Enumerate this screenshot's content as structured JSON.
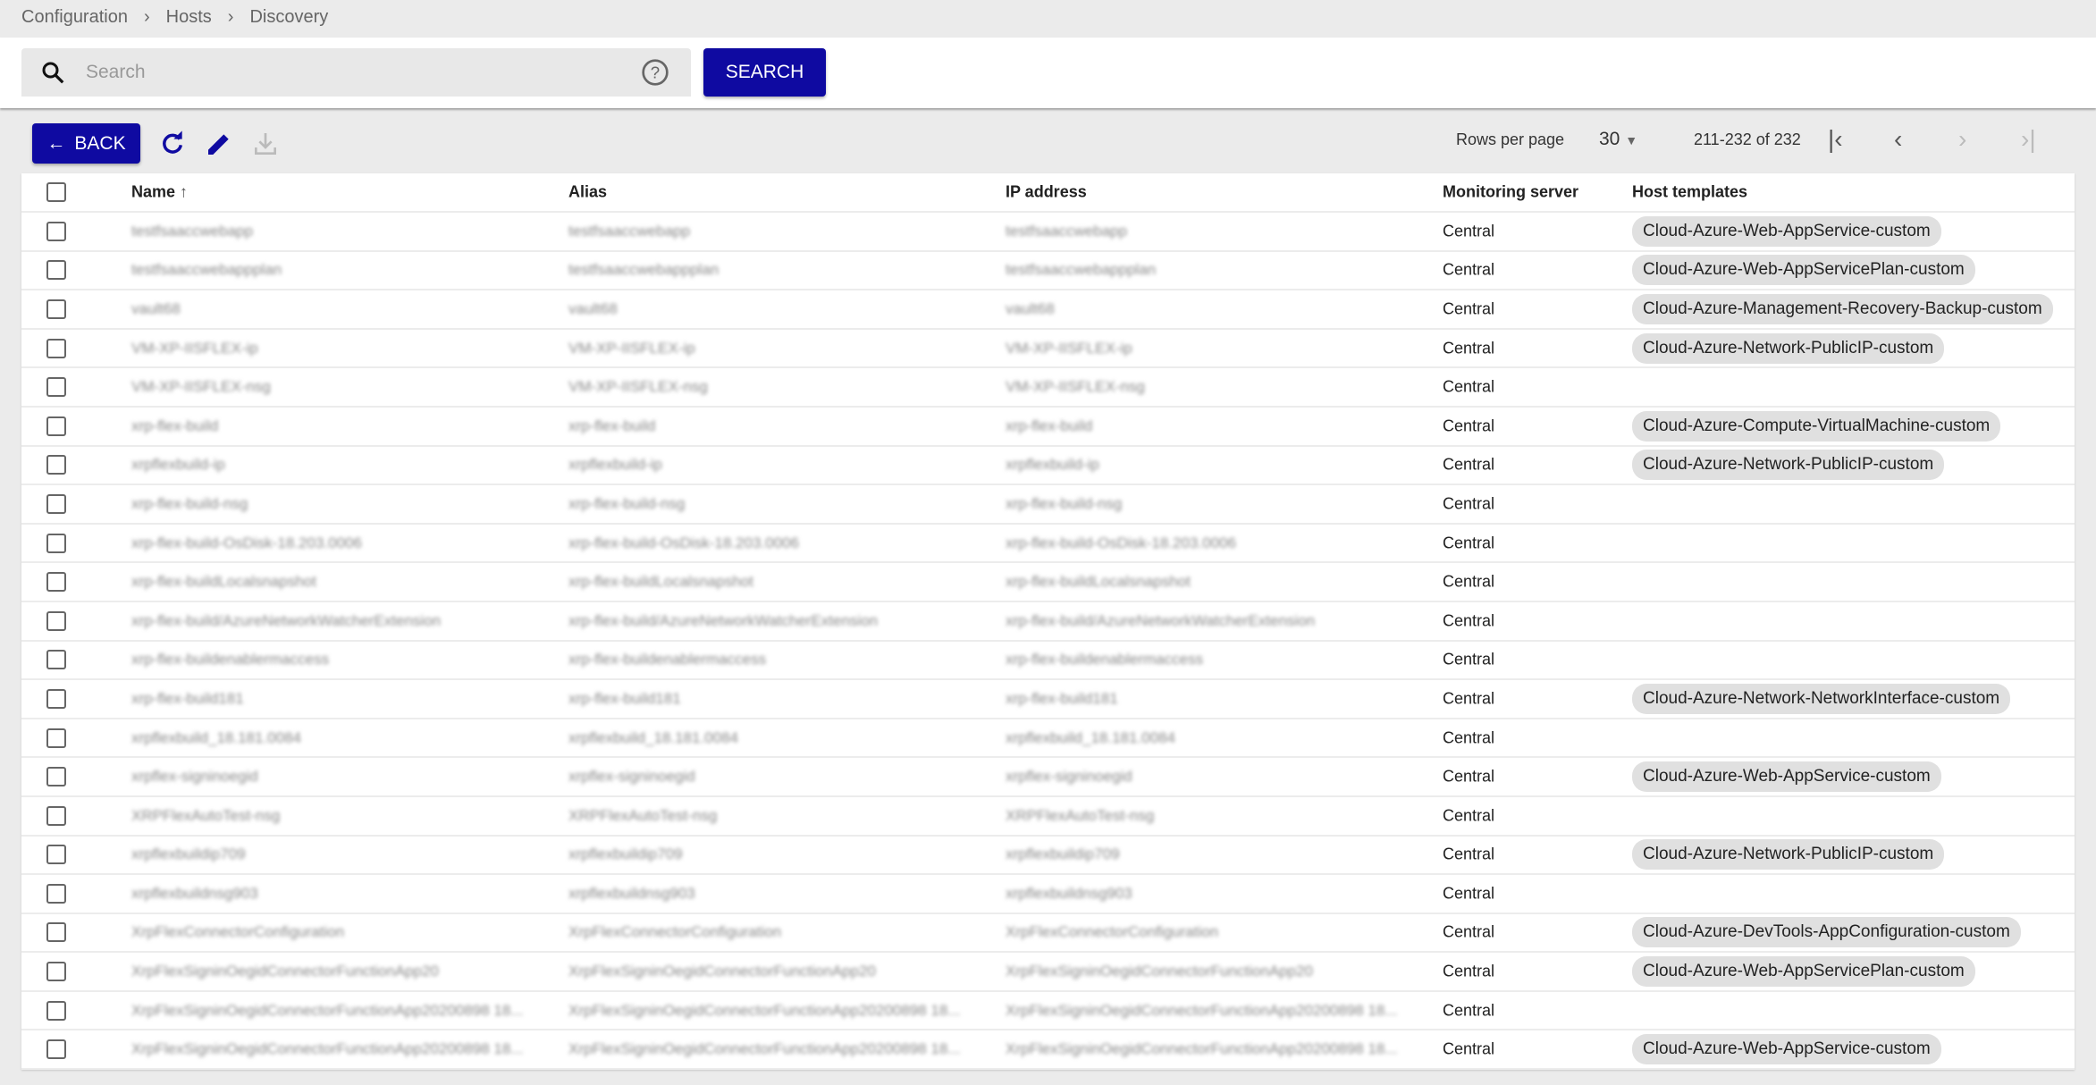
{
  "breadcrumb": [
    "Configuration",
    "Hosts",
    "Discovery"
  ],
  "search": {
    "placeholder": "Search",
    "button": "SEARCH"
  },
  "toolbar": {
    "back": "BACK"
  },
  "pagination": {
    "rows_per_page_label": "Rows per page",
    "rows_per_page": "30",
    "range": "211-232 of 232"
  },
  "columns": [
    "Name",
    "Alias",
    "IP address",
    "Monitoring server",
    "Host templates"
  ],
  "colors": {
    "primary": "#0f0aa1"
  },
  "rows": [
    {
      "name": "testfsaaccwebapp",
      "server": "Central",
      "template": "Cloud-Azure-Web-AppService-custom"
    },
    {
      "name": "testfsaaccwebappplan",
      "server": "Central",
      "template": "Cloud-Azure-Web-AppServicePlan-custom"
    },
    {
      "name": "vault68",
      "server": "Central",
      "template": "Cloud-Azure-Management-Recovery-Backup-custom"
    },
    {
      "name": "VM-XP-IISFLEX-ip",
      "server": "Central",
      "template": "Cloud-Azure-Network-PublicIP-custom"
    },
    {
      "name": "VM-XP-IISFLEX-nsg",
      "server": "Central",
      "template": ""
    },
    {
      "name": "xrp-flex-build",
      "server": "Central",
      "template": "Cloud-Azure-Compute-VirtualMachine-custom"
    },
    {
      "name": "xrpflexbuild-ip",
      "server": "Central",
      "template": "Cloud-Azure-Network-PublicIP-custom"
    },
    {
      "name": "xrp-flex-build-nsg",
      "server": "Central",
      "template": ""
    },
    {
      "name": "xrp-flex-build-OsDisk-18.203.0006",
      "server": "Central",
      "template": ""
    },
    {
      "name": "xrp-flex-buildLocalsnapshot",
      "server": "Central",
      "template": ""
    },
    {
      "name": "xrp-flex-build/AzureNetworkWatcherExtension",
      "server": "Central",
      "template": ""
    },
    {
      "name": "xrp-flex-buildenablermaccess",
      "server": "Central",
      "template": ""
    },
    {
      "name": "xrp-flex-build181",
      "server": "Central",
      "template": "Cloud-Azure-Network-NetworkInterface-custom"
    },
    {
      "name": "xrpflexbuild_18.181.0084",
      "server": "Central",
      "template": ""
    },
    {
      "name": "xrpflex-signinoegid",
      "server": "Central",
      "template": "Cloud-Azure-Web-AppService-custom"
    },
    {
      "name": "XRPFlexAutoTest-nsg",
      "server": "Central",
      "template": ""
    },
    {
      "name": "xrpflexbuildip709",
      "server": "Central",
      "template": "Cloud-Azure-Network-PublicIP-custom"
    },
    {
      "name": "xrpflexbuildnsg903",
      "server": "Central",
      "template": ""
    },
    {
      "name": "XrpFlexConnectorConfiguration",
      "server": "Central",
      "template": "Cloud-Azure-DevTools-AppConfiguration-custom"
    },
    {
      "name": "XrpFlexSigninOegidConnectorFunctionApp20",
      "server": "Central",
      "template": "Cloud-Azure-Web-AppServicePlan-custom"
    },
    {
      "name": "XrpFlexSigninOegidConnectorFunctionApp20200898 18...",
      "server": "Central",
      "template": ""
    },
    {
      "name": "XrpFlexSigninOegidConnectorFunctionApp20200898 18...",
      "server": "Central",
      "template": "Cloud-Azure-Web-AppService-custom"
    }
  ]
}
